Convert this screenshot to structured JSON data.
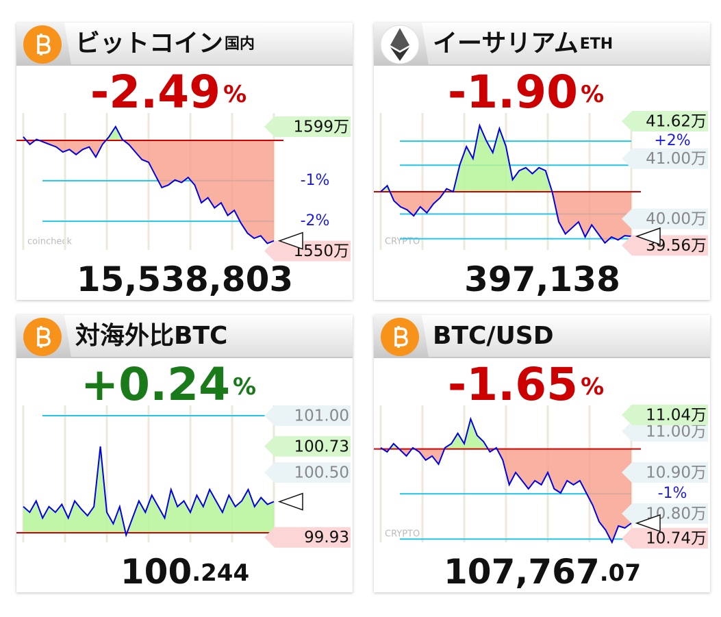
{
  "panels": [
    {
      "title": "ビットコイン",
      "subtitle": "国内",
      "change": {
        "value": -2.49,
        "label": "-2.49"
      },
      "change_unit": "%",
      "change_color": "#cc0000",
      "price_main": "15,538,803",
      "watermark": "coincheck",
      "chart": {
        "type": "line",
        "ylim": [
          1550.4,
          1604.4
        ],
        "base": 1593.6,
        "values": [
          1595,
          1592,
          1594,
          1593,
          1592,
          1591,
          1589,
          1590,
          1588,
          1590,
          1591,
          1587,
          1592,
          1595,
          1599,
          1594,
          1592,
          1589,
          1586,
          1585,
          1580,
          1575,
          1576,
          1578,
          1577,
          1579,
          1576,
          1569,
          1571,
          1567,
          1569,
          1564,
          1566,
          1561,
          1557,
          1555,
          1556,
          1553,
          1554
        ],
        "lines": [
          1577.7,
          1561.7
        ],
        "pct_labels": [
          {
            "value": 1577.7,
            "label": "-1%"
          },
          {
            "value": 1561.7,
            "label": "-2%"
          }
        ],
        "price_tags": [],
        "high": {
          "value": 1599,
          "label": "1599万"
        },
        "low": {
          "value": 1550,
          "label": "1550万"
        }
      }
    },
    {
      "title": "イーサリアム",
      "subtitle": "ETH",
      "change": {
        "value": -1.9,
        "label": "-1.90"
      },
      "change_unit": "%",
      "change_color": "#cc0000",
      "price_main": "397,138",
      "watermark": "CRYPTO",
      "chart": {
        "type": "line",
        "ylim": [
          39.484,
          41.757
        ],
        "base": 40.45,
        "values": [
          40.45,
          40.55,
          40.3,
          40.2,
          40.15,
          40.05,
          40.2,
          40.1,
          40.25,
          40.35,
          40.5,
          40.45,
          40.9,
          41.2,
          41.0,
          41.55,
          41.3,
          41.1,
          41.5,
          41.2,
          40.65,
          40.8,
          40.85,
          40.75,
          40.85,
          40.8,
          40.45,
          39.95,
          39.75,
          39.85,
          39.95,
          39.7,
          39.9,
          39.75,
          39.6,
          39.7,
          39.65,
          39.72,
          39.71
        ],
        "lines": [
          41.29,
          40.89,
          40.08,
          39.67
        ],
        "pct_labels": [
          {
            "value": 41.29,
            "label": "+2%"
          }
        ],
        "price_tags": [
          {
            "value": 41.0,
            "label": "41.00万"
          },
          {
            "value": 40.0,
            "label": "40.00万"
          }
        ],
        "high": {
          "value": 41.62,
          "label": "41.62万"
        },
        "low": {
          "value": 39.56,
          "label": "39.56万"
        }
      }
    },
    {
      "title": "対海外比BTC",
      "change": {
        "value": 0.24,
        "label": "+0.24"
      },
      "change_unit": "%",
      "change_color": "#1a7a1a",
      "price_main": "100",
      "price_decimal": ".244",
      "chart": {
        "type": "line",
        "ylim": [
          99.886,
          101.09
        ],
        "base": 99.97,
        "values": [
          100.2,
          100.15,
          100.25,
          100.1,
          100.2,
          100.15,
          100.22,
          100.1,
          100.25,
          100.18,
          100.12,
          100.2,
          100.73,
          100.15,
          100.05,
          100.2,
          99.95,
          100.1,
          100.25,
          100.15,
          100.3,
          100.2,
          100.1,
          100.35,
          100.2,
          100.25,
          100.15,
          100.3,
          100.2,
          100.35,
          100.25,
          100.15,
          100.3,
          100.2,
          100.25,
          100.35,
          100.2,
          100.28,
          100.22,
          100.244
        ],
        "lines": [
          101.0
        ],
        "pct_labels": [],
        "price_tags": [
          {
            "value": 101.0,
            "label": "101.00"
          },
          {
            "value": 100.5,
            "label": "100.50"
          }
        ],
        "high": {
          "value": 100.73,
          "label": "100.73"
        },
        "low": {
          "value": 99.93,
          "label": "99.93"
        }
      }
    },
    {
      "title": "BTC/USD",
      "change": {
        "value": -1.65,
        "label": "-1.65"
      },
      "change_unit": "%",
      "change_color": "#cc0000",
      "price_main": "107,767",
      "price_decimal": ".07",
      "watermark": "CRYPTO",
      "chart": {
        "type": "line",
        "ylim": [
          10.73,
          11.063
        ],
        "base": 10.957,
        "values": [
          10.96,
          10.95,
          10.97,
          10.955,
          10.94,
          10.96,
          10.95,
          10.93,
          10.94,
          10.92,
          10.96,
          10.97,
          10.995,
          10.97,
          11.03,
          10.99,
          10.975,
          10.95,
          10.96,
          10.93,
          10.87,
          10.9,
          10.88,
          10.86,
          10.88,
          10.87,
          10.9,
          10.86,
          10.85,
          10.88,
          10.87,
          10.88,
          10.85,
          10.82,
          10.78,
          10.76,
          10.73,
          10.77,
          10.765,
          10.7767
        ],
        "lines": [
          10.848,
          10.738
        ],
        "pct_labels": [
          {
            "value": 10.848,
            "label": "-1%"
          }
        ],
        "price_tags": [
          {
            "value": 11.0,
            "label": "11.00万"
          },
          {
            "value": 10.9,
            "label": "10.90万"
          },
          {
            "value": 10.8,
            "label": "10.80万"
          }
        ],
        "high": {
          "value": 11.04,
          "label": "11.04万"
        },
        "low": {
          "value": 10.74,
          "label": "10.74万"
        }
      }
    }
  ]
}
